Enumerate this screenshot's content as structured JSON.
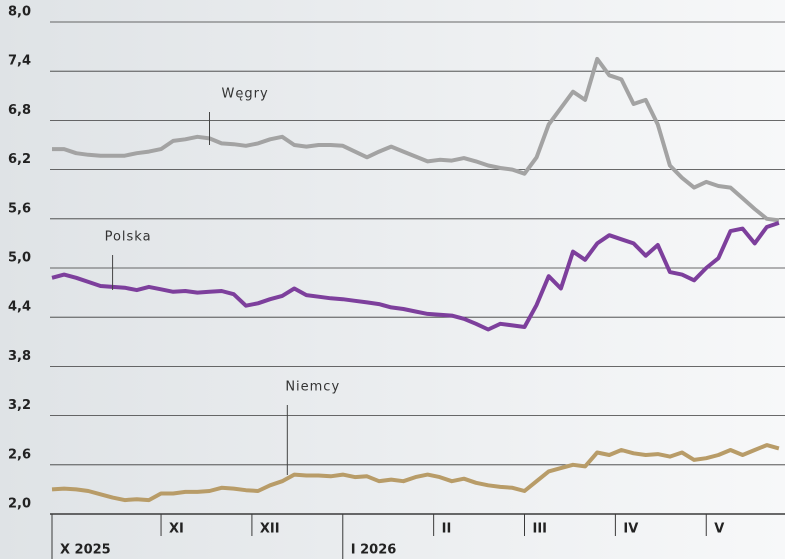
{
  "chart_data": {
    "type": "line",
    "x": [
      0,
      4,
      8,
      12,
      16,
      20,
      24,
      28,
      32,
      36,
      40,
      44,
      48,
      52,
      56,
      60,
      64,
      68,
      72,
      76,
      80,
      84,
      88,
      92,
      96,
      100,
      104,
      108,
      112,
      116,
      120,
      124,
      128,
      132,
      136,
      140,
      144,
      148,
      152,
      156,
      160,
      164,
      168,
      172,
      176,
      180,
      184,
      188,
      192,
      196,
      200,
      204,
      208,
      212,
      216,
      220,
      224,
      228,
      232,
      236,
      240
    ],
    "series": [
      {
        "name": "Węgry",
        "color": "#a3a3a3",
        "values": [
          6.45,
          6.45,
          6.4,
          6.38,
          6.37,
          6.37,
          6.37,
          6.4,
          6.42,
          6.45,
          6.55,
          6.57,
          6.6,
          6.58,
          6.52,
          6.51,
          6.49,
          6.52,
          6.57,
          6.6,
          6.5,
          6.48,
          6.5,
          6.5,
          6.49,
          6.42,
          6.35,
          6.42,
          6.48,
          6.42,
          6.36,
          6.3,
          6.32,
          6.31,
          6.34,
          6.3,
          6.25,
          6.22,
          6.2,
          6.15,
          6.35,
          6.75,
          6.95,
          7.15,
          7.05,
          7.55,
          7.35,
          7.3,
          7.0,
          7.05,
          6.75,
          6.25,
          6.1,
          5.98,
          6.05,
          6.0,
          5.98,
          5.85,
          5.72,
          5.6,
          5.58
        ]
      },
      {
        "name": "Polska",
        "color": "#7d3f9c",
        "values": [
          4.88,
          4.92,
          4.88,
          4.83,
          4.78,
          4.77,
          4.76,
          4.73,
          4.77,
          4.74,
          4.71,
          4.72,
          4.7,
          4.71,
          4.72,
          4.68,
          4.54,
          4.57,
          4.62,
          4.66,
          4.75,
          4.67,
          4.65,
          4.63,
          4.62,
          4.6,
          4.58,
          4.56,
          4.52,
          4.5,
          4.47,
          4.44,
          4.43,
          4.42,
          4.38,
          4.32,
          4.25,
          4.32,
          4.3,
          4.28,
          4.55,
          4.9,
          4.75,
          5.2,
          5.1,
          5.3,
          5.4,
          5.35,
          5.3,
          5.15,
          5.28,
          4.95,
          4.92,
          4.85,
          5.0,
          5.12,
          5.45,
          5.48,
          5.3,
          5.5,
          5.55
        ]
      },
      {
        "name": "Niemcy",
        "color": "#b89c68",
        "values": [
          2.3,
          2.31,
          2.3,
          2.28,
          2.24,
          2.2,
          2.17,
          2.18,
          2.17,
          2.25,
          2.25,
          2.27,
          2.27,
          2.28,
          2.32,
          2.31,
          2.29,
          2.28,
          2.35,
          2.4,
          2.48,
          2.47,
          2.47,
          2.46,
          2.48,
          2.45,
          2.46,
          2.4,
          2.42,
          2.4,
          2.45,
          2.48,
          2.45,
          2.4,
          2.43,
          2.38,
          2.35,
          2.33,
          2.32,
          2.28,
          2.4,
          2.52,
          2.56,
          2.6,
          2.58,
          2.75,
          2.72,
          2.78,
          2.74,
          2.72,
          2.73,
          2.7,
          2.75,
          2.66,
          2.68,
          2.72,
          2.78,
          2.72,
          2.78,
          2.84,
          2.8
        ]
      }
    ],
    "xlim": [
      0,
      242
    ],
    "xticks": [
      {
        "value": 0,
        "label": "X 2025"
      },
      {
        "value": 36,
        "label": "XI"
      },
      {
        "value": 66,
        "label": "XII"
      },
      {
        "value": 96,
        "label": "I 2026"
      },
      {
        "value": 126,
        "label": "II"
      },
      {
        "value": 156,
        "label": "III"
      },
      {
        "value": 186,
        "label": "IV"
      },
      {
        "value": 216,
        "label": "V"
      }
    ],
    "ylim": [
      2.0,
      8.0
    ],
    "yticks": [
      {
        "value": 2.0,
        "label": "2,0"
      },
      {
        "value": 2.6,
        "label": "2,6"
      },
      {
        "value": 3.2,
        "label": "3,2"
      },
      {
        "value": 3.8,
        "label": "3,8"
      },
      {
        "value": 4.4,
        "label": "4,4"
      },
      {
        "value": 5.0,
        "label": "5,0"
      },
      {
        "value": 5.6,
        "label": "5,6"
      },
      {
        "value": 6.2,
        "label": "6,2"
      },
      {
        "value": 6.8,
        "label": "6,8"
      },
      {
        "value": 7.4,
        "label": "7,4"
      },
      {
        "value": 8.0,
        "label": "8,0"
      }
    ],
    "grid": true
  }
}
